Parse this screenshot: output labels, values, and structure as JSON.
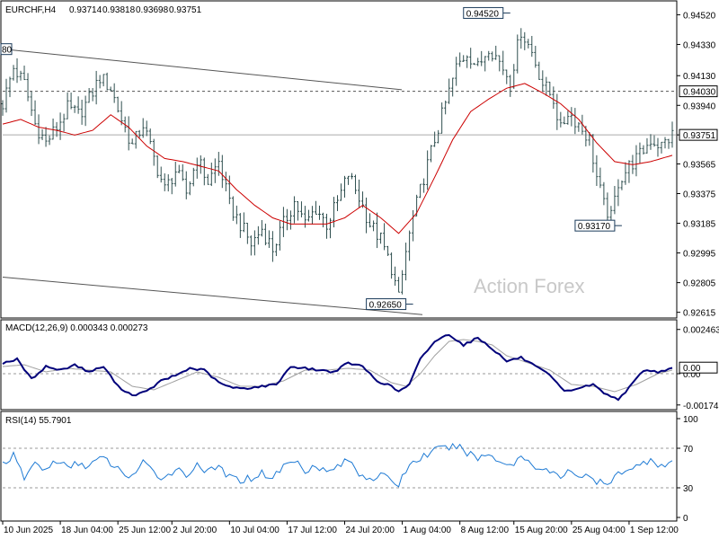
{
  "header": {
    "symbol": "EURCHF,H4",
    "open": "0.93714",
    "high": "0.93818",
    "low": "0.93698",
    "close": "0.93751"
  },
  "watermark": "Action Forex",
  "colors": {
    "candles": "#2f4f4f",
    "ma": "#cc0000",
    "macd": "#00007a",
    "signal": "#a0a0a0",
    "rsi": "#1e7ad4",
    "price_label_bg": "#ffffff"
  },
  "chart_data": [
    {
      "type": "bar",
      "name": "price",
      "ylim": [
        0.9259,
        0.9458
      ],
      "y_ticks": [
        "0.94520",
        "0.94330",
        "0.94130",
        "0.93940",
        "0.93751",
        "0.93565",
        "0.93375",
        "0.93185",
        "0.92995",
        "0.92805",
        "0.92615"
      ],
      "y_tick_values": [
        0.9452,
        0.9433,
        0.9413,
        0.9394,
        0.93751,
        0.93565,
        0.93375,
        0.93185,
        0.92995,
        0.92805,
        0.92615
      ],
      "highlight_levels": [
        {
          "label": "0.94030",
          "value": 0.9403
        },
        {
          "label": "0.93751",
          "value": 0.93751
        }
      ],
      "annotations": [
        {
          "label": "0.94520",
          "value": 0.9452
        },
        {
          "label": "0.93170",
          "value": 0.9317
        },
        {
          "label": "0.92650",
          "value": 0.9265
        }
      ],
      "edge_label": "80",
      "anchors": [
        [
          0,
          0.9395
        ],
        [
          3,
          0.9418
        ],
        [
          6,
          0.9408
        ],
        [
          9,
          0.9382
        ],
        [
          12,
          0.937
        ],
        [
          15,
          0.938
        ],
        [
          18,
          0.9392
        ],
        [
          21,
          0.9388
        ],
        [
          24,
          0.9398
        ],
        [
          27,
          0.9412
        ],
        [
          30,
          0.9405
        ],
        [
          33,
          0.9385
        ],
        [
          36,
          0.9368
        ],
        [
          39,
          0.9382
        ],
        [
          42,
          0.936
        ],
        [
          45,
          0.934
        ],
        [
          48,
          0.9352
        ],
        [
          51,
          0.9338
        ],
        [
          54,
          0.936
        ],
        [
          57,
          0.9345
        ],
        [
          60,
          0.9358
        ],
        [
          63,
          0.933
        ],
        [
          66,
          0.9318
        ],
        [
          69,
          0.9305
        ],
        [
          72,
          0.9315
        ],
        [
          75,
          0.9302
        ],
        [
          78,
          0.9318
        ],
        [
          81,
          0.9332
        ],
        [
          84,
          0.9318
        ],
        [
          87,
          0.9328
        ],
        [
          90,
          0.9318
        ],
        [
          93,
          0.9332
        ],
        [
          96,
          0.935
        ],
        [
          99,
          0.9335
        ],
        [
          102,
          0.9318
        ],
        [
          105,
          0.9308
        ],
        [
          108,
          0.929
        ],
        [
          110,
          0.927
        ],
        [
          112,
          0.93
        ],
        [
          114,
          0.9322
        ],
        [
          117,
          0.9348
        ],
        [
          120,
          0.9372
        ],
        [
          123,
          0.9395
        ],
        [
          126,
          0.9418
        ],
        [
          129,
          0.9428
        ],
        [
          132,
          0.9418
        ],
        [
          135,
          0.9432
        ],
        [
          138,
          0.9422
        ],
        [
          141,
          0.941
        ],
        [
          144,
          0.9442
        ],
        [
          147,
          0.9428
        ],
        [
          150,
          0.9408
        ],
        [
          153,
          0.9398
        ],
        [
          155,
          0.9378
        ],
        [
          157,
          0.939
        ],
        [
          160,
          0.9382
        ],
        [
          163,
          0.9372
        ],
        [
          165,
          0.9348
        ],
        [
          167,
          0.933
        ],
        [
          169,
          0.9322
        ],
        [
          171,
          0.9345
        ],
        [
          174,
          0.9355
        ],
        [
          177,
          0.9362
        ],
        [
          180,
          0.9372
        ],
        [
          183,
          0.9368
        ],
        [
          186,
          0.9375
        ]
      ],
      "ma_anchors": [
        [
          0,
          0.9382
        ],
        [
          5,
          0.9385
        ],
        [
          10,
          0.938
        ],
        [
          15,
          0.9378
        ],
        [
          20,
          0.9375
        ],
        [
          25,
          0.9378
        ],
        [
          30,
          0.9388
        ],
        [
          35,
          0.938
        ],
        [
          40,
          0.9368
        ],
        [
          45,
          0.936
        ],
        [
          50,
          0.9358
        ],
        [
          55,
          0.9355
        ],
        [
          60,
          0.9352
        ],
        [
          65,
          0.934
        ],
        [
          70,
          0.933
        ],
        [
          75,
          0.9322
        ],
        [
          80,
          0.9318
        ],
        [
          85,
          0.9318
        ],
        [
          90,
          0.9318
        ],
        [
          95,
          0.9322
        ],
        [
          100,
          0.933
        ],
        [
          105,
          0.9322
        ],
        [
          110,
          0.9312
        ],
        [
          115,
          0.9325
        ],
        [
          120,
          0.9348
        ],
        [
          125,
          0.9372
        ],
        [
          130,
          0.939
        ],
        [
          135,
          0.9398
        ],
        [
          140,
          0.9405
        ],
        [
          145,
          0.9408
        ],
        [
          150,
          0.9402
        ],
        [
          155,
          0.9395
        ],
        [
          160,
          0.9385
        ],
        [
          165,
          0.937
        ],
        [
          170,
          0.9358
        ],
        [
          175,
          0.9356
        ],
        [
          180,
          0.9358
        ],
        [
          186,
          0.9362
        ]
      ]
    },
    {
      "type": "line",
      "name": "MACD",
      "label": "MACD(12,26,9) 0.000343 0.000273",
      "ylim": [
        -0.0019,
        0.0027
      ],
      "y_ticks": [
        "0.002463",
        "0.00",
        "-0.00174"
      ],
      "y_tick_values": [
        0.002463,
        0.0,
        -0.00174
      ],
      "current_label": "0.00",
      "macd_anchors": [
        [
          0,
          0.0006
        ],
        [
          4,
          0.0008
        ],
        [
          8,
          -0.0003
        ],
        [
          12,
          0.0004
        ],
        [
          16,
          0.0002
        ],
        [
          20,
          0.0005
        ],
        [
          24,
          0.0001
        ],
        [
          28,
          0.0004
        ],
        [
          32,
          -0.0007
        ],
        [
          36,
          -0.0012
        ],
        [
          40,
          -0.001
        ],
        [
          44,
          -0.0004
        ],
        [
          48,
          -0.0001
        ],
        [
          52,
          0.0003
        ],
        [
          56,
          0.0002
        ],
        [
          60,
          -0.0005
        ],
        [
          64,
          -0.0008
        ],
        [
          68,
          -0.0008
        ],
        [
          72,
          -0.0007
        ],
        [
          76,
          -0.0006
        ],
        [
          80,
          0.0004
        ],
        [
          84,
          0.0003
        ],
        [
          88,
          0.0002
        ],
        [
          92,
          0.0001
        ],
        [
          96,
          0.0006
        ],
        [
          100,
          0.0004
        ],
        [
          104,
          -0.0004
        ],
        [
          108,
          -0.0007
        ],
        [
          110,
          -0.001
        ],
        [
          113,
          -0.0006
        ],
        [
          116,
          0.0008
        ],
        [
          120,
          0.0018
        ],
        [
          124,
          0.0022
        ],
        [
          128,
          0.0016
        ],
        [
          132,
          0.002
        ],
        [
          136,
          0.0014
        ],
        [
          140,
          0.0007
        ],
        [
          144,
          0.0009
        ],
        [
          148,
          0.0004
        ],
        [
          152,
          -0.0001
        ],
        [
          156,
          -0.001
        ],
        [
          160,
          -0.0008
        ],
        [
          164,
          -0.0006
        ],
        [
          168,
          -0.0012
        ],
        [
          171,
          -0.0014
        ],
        [
          174,
          -0.0008
        ],
        [
          178,
          0.0002
        ],
        [
          182,
          0.0001
        ],
        [
          186,
          0.0003
        ]
      ],
      "signal_anchors": [
        [
          0,
          0.0004
        ],
        [
          6,
          0.0005
        ],
        [
          12,
          0.0001
        ],
        [
          18,
          0.0003
        ],
        [
          24,
          0.0002
        ],
        [
          30,
          0.0001
        ],
        [
          36,
          -0.0007
        ],
        [
          42,
          -0.0009
        ],
        [
          48,
          -0.0004
        ],
        [
          54,
          0.0001
        ],
        [
          60,
          -0.0002
        ],
        [
          66,
          -0.0007
        ],
        [
          72,
          -0.0007
        ],
        [
          78,
          -0.0004
        ],
        [
          84,
          0.0002
        ],
        [
          90,
          0.0002
        ],
        [
          96,
          0.0003
        ],
        [
          102,
          0.0002
        ],
        [
          108,
          -0.0005
        ],
        [
          112,
          -0.0007
        ],
        [
          116,
          0.0
        ],
        [
          120,
          0.001
        ],
        [
          124,
          0.0018
        ],
        [
          128,
          0.0019
        ],
        [
          132,
          0.0018
        ],
        [
          136,
          0.0016
        ],
        [
          140,
          0.001
        ],
        [
          146,
          0.0006
        ],
        [
          152,
          0.0002
        ],
        [
          158,
          -0.0006
        ],
        [
          164,
          -0.0007
        ],
        [
          170,
          -0.001
        ],
        [
          176,
          -0.0006
        ],
        [
          182,
          0.0
        ],
        [
          186,
          0.0002
        ]
      ]
    },
    {
      "type": "line",
      "name": "RSI",
      "label": "RSI(14) 55.7901",
      "ylim": [
        0,
        100
      ],
      "y_ticks": [
        "100",
        "70",
        "30",
        "0"
      ],
      "y_tick_values": [
        100,
        70,
        30,
        0
      ],
      "levels": [
        70,
        30
      ],
      "anchors": [
        [
          0,
          55
        ],
        [
          3,
          62
        ],
        [
          6,
          40
        ],
        [
          9,
          55
        ],
        [
          12,
          48
        ],
        [
          15,
          58
        ],
        [
          18,
          50
        ],
        [
          21,
          55
        ],
        [
          24,
          52
        ],
        [
          27,
          60
        ],
        [
          30,
          55
        ],
        [
          33,
          45
        ],
        [
          36,
          42
        ],
        [
          39,
          55
        ],
        [
          42,
          45
        ],
        [
          45,
          40
        ],
        [
          48,
          50
        ],
        [
          51,
          42
        ],
        [
          54,
          55
        ],
        [
          57,
          45
        ],
        [
          60,
          52
        ],
        [
          63,
          40
        ],
        [
          66,
          38
        ],
        [
          69,
          40
        ],
        [
          72,
          45
        ],
        [
          75,
          40
        ],
        [
          78,
          52
        ],
        [
          81,
          58
        ],
        [
          84,
          48
        ],
        [
          87,
          54
        ],
        [
          90,
          45
        ],
        [
          93,
          52
        ],
        [
          96,
          58
        ],
        [
          99,
          45
        ],
        [
          102,
          40
        ],
        [
          105,
          42
        ],
        [
          108,
          38
        ],
        [
          110,
          33
        ],
        [
          112,
          48
        ],
        [
          114,
          56
        ],
        [
          117,
          62
        ],
        [
          120,
          68
        ],
        [
          123,
          70
        ],
        [
          126,
          72
        ],
        [
          129,
          66
        ],
        [
          132,
          60
        ],
        [
          135,
          64
        ],
        [
          138,
          58
        ],
        [
          141,
          52
        ],
        [
          144,
          62
        ],
        [
          147,
          55
        ],
        [
          150,
          48
        ],
        [
          153,
          45
        ],
        [
          155,
          38
        ],
        [
          157,
          50
        ],
        [
          160,
          42
        ],
        [
          163,
          40
        ],
        [
          165,
          36
        ],
        [
          167,
          34
        ],
        [
          169,
          33
        ],
        [
          171,
          46
        ],
        [
          174,
          50
        ],
        [
          177,
          52
        ],
        [
          180,
          60
        ],
        [
          183,
          52
        ],
        [
          186,
          56
        ]
      ]
    }
  ],
  "x_axis": {
    "tick_labels": [
      "10 Jun 2025",
      "18 Jun 04:00",
      "25 Jun 12:00",
      "2 Jul 20:00",
      "10 Jul 04:00",
      "17 Jul 12:00",
      "24 Jul 20:00",
      "1 Aug 04:00",
      "8 Aug 12:00",
      "15 Aug 20:00",
      "25 Aug 04:00",
      "1 Sep 12:00"
    ],
    "tick_bars": [
      0,
      16,
      32,
      47,
      63,
      79,
      95,
      111,
      127,
      142,
      158,
      174
    ],
    "bar_count": 187
  }
}
